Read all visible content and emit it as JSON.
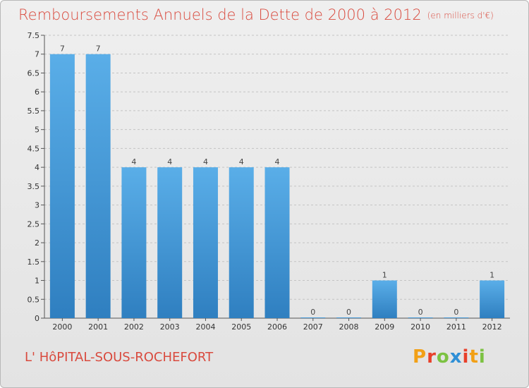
{
  "title": "Remboursements Annuels de la Dette de 2000 à 2012",
  "unit_note": "(en milliers d'€)",
  "commune": "L' HôPITAL-SOUS-ROCHEFORT",
  "logo": {
    "text": "Proxiti",
    "colors": [
      "#f2a016",
      "#e8402a",
      "#7cc242",
      "#2f8fd6",
      "#e8402a",
      "#f2a016",
      "#7cc242"
    ]
  },
  "colors": {
    "title": "#d94a3e",
    "bar": "#5aaee8",
    "bar_dark": "#2f7fc0",
    "grid": "#c4c4c4"
  },
  "chart_data": {
    "type": "bar",
    "categories": [
      "2000",
      "2001",
      "2002",
      "2003",
      "2004",
      "2005",
      "2006",
      "2007",
      "2008",
      "2009",
      "2010",
      "2011",
      "2012"
    ],
    "values": [
      7,
      7,
      4,
      4,
      4,
      4,
      4,
      0,
      0,
      1,
      0,
      0,
      1
    ],
    "value_labels": [
      "7",
      "7",
      "4",
      "4",
      "4",
      "4",
      "4",
      "0",
      "0",
      "1",
      "0",
      "0",
      "1"
    ],
    "ylim": [
      0,
      7.5
    ],
    "yticks": [
      0,
      0.5,
      1,
      1.5,
      2,
      2.5,
      3,
      3.5,
      4,
      4.5,
      5,
      5.5,
      6,
      6.5,
      7,
      7.5
    ],
    "ytick_labels": [
      "0",
      "0.5",
      "1",
      "1.5",
      "2",
      "2.5",
      "3",
      "3.5",
      "4",
      "4.5",
      "5",
      "5.5",
      "6",
      "6.5",
      "7",
      "7.5"
    ],
    "title": "Remboursements Annuels de la Dette de 2000 à 2012",
    "xlabel": "",
    "ylabel": "en milliers d'€",
    "grid": true
  }
}
